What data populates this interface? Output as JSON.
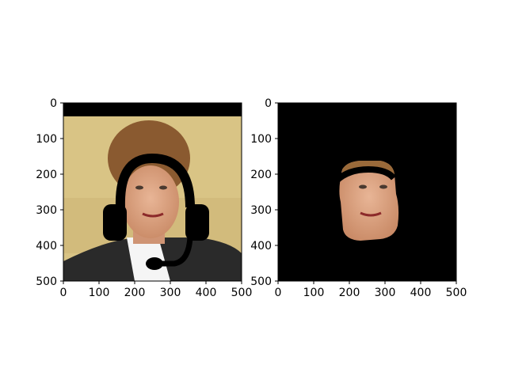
{
  "figure": {
    "panels": [
      {
        "name": "left-panel",
        "content": "photo-with-headset-overlay",
        "x_ticks": [
          "0",
          "100",
          "200",
          "300",
          "400",
          "500"
        ],
        "y_ticks": [
          "0",
          "100",
          "200",
          "300",
          "400",
          "500"
        ]
      },
      {
        "name": "right-panel",
        "content": "segmented-face-on-black",
        "x_ticks": [
          "0",
          "100",
          "200",
          "300",
          "400",
          "500"
        ],
        "y_ticks": [
          "0",
          "100",
          "200",
          "300",
          "400",
          "500"
        ]
      }
    ],
    "axis_range": [
      0,
      500
    ],
    "colors": {
      "background": "#d9c485",
      "mask": "#000000",
      "skin": "#d9a07a",
      "hair": "#8a5a30",
      "jacket": "#2a2a2a",
      "shirt": "#f5f5f5"
    }
  }
}
